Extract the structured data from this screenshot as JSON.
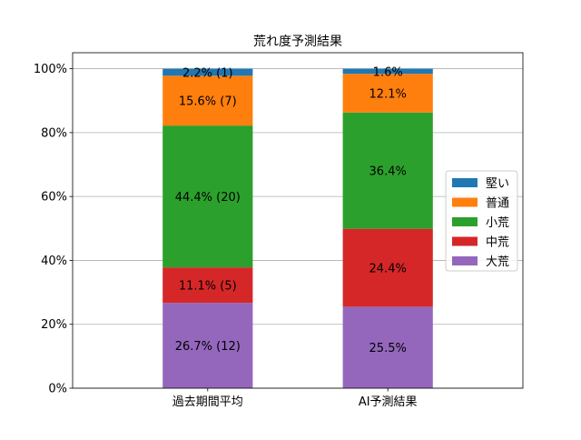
{
  "chart_data": {
    "type": "bar",
    "stacked": true,
    "title": "荒れ度予測結果",
    "xlabel": "",
    "ylabel": "",
    "categories": [
      "過去期間平均",
      "AI予測結果"
    ],
    "ylim": [
      0,
      105
    ],
    "yticks": [
      0,
      20,
      40,
      60,
      80,
      100
    ],
    "ytick_labels": [
      "0%",
      "20%",
      "40%",
      "60%",
      "80%",
      "100%"
    ],
    "grid": "horizontal",
    "legend_position": "center-right",
    "series": [
      {
        "name": "大荒",
        "color": "#9467bd",
        "values": [
          26.7,
          25.5
        ],
        "labels": [
          "26.7% (12)",
          "25.5%"
        ]
      },
      {
        "name": "中荒",
        "color": "#d62728",
        "values": [
          11.1,
          24.4
        ],
        "labels": [
          "11.1% (5)",
          "24.4%"
        ]
      },
      {
        "name": "小荒",
        "color": "#2ca02c",
        "values": [
          44.4,
          36.4
        ],
        "labels": [
          "44.4% (20)",
          "36.4%"
        ]
      },
      {
        "name": "普通",
        "color": "#ff7f0e",
        "values": [
          15.6,
          12.1
        ],
        "labels": [
          "15.6% (7)",
          "12.1%"
        ]
      },
      {
        "name": "堅い",
        "color": "#1f77b4",
        "values": [
          2.2,
          1.6
        ],
        "labels": [
          "2.2% (1)",
          "1.6%"
        ]
      }
    ],
    "legend_order": [
      "堅い",
      "普通",
      "小荒",
      "中荒",
      "大荒"
    ]
  }
}
